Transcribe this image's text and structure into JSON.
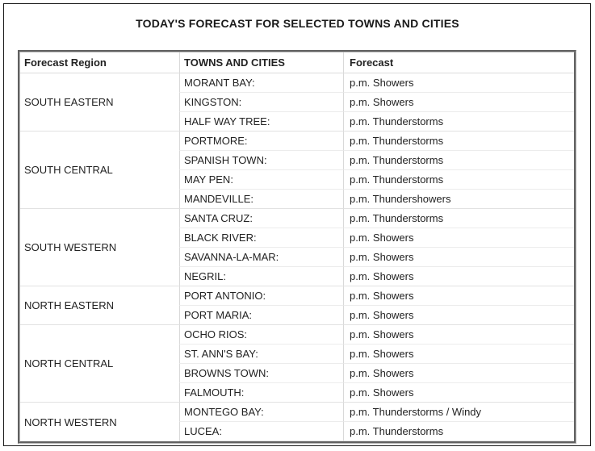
{
  "title": "TODAY'S FORECAST FOR SELECTED TOWNS AND CITIES",
  "colors": {
    "page_background": "#ffffff",
    "frame_border": "#1c1c1c",
    "text": "#222222",
    "table_outer_border": "#b4b4b4",
    "cell_divider": "#ececec",
    "column_divider": "#d9d9d9"
  },
  "table": {
    "headers": {
      "region": "Forecast Region",
      "towns": "TOWNS AND CITIES",
      "forecast": "Forecast"
    },
    "regions": [
      {
        "name": "SOUTH EASTERN",
        "rows": [
          {
            "town": "MORANT BAY:",
            "forecast": "p.m. Showers"
          },
          {
            "town": "KINGSTON:",
            "forecast": "p.m. Showers"
          },
          {
            "town": "HALF WAY TREE:",
            "forecast": "p.m. Thunderstorms"
          }
        ]
      },
      {
        "name": "SOUTH CENTRAL",
        "rows": [
          {
            "town": "PORTMORE:",
            "forecast": "p.m. Thunderstorms"
          },
          {
            "town": "SPANISH TOWN:",
            "forecast": "p.m. Thunderstorms"
          },
          {
            "town": "MAY PEN:",
            "forecast": "p.m. Thunderstorms"
          },
          {
            "town": "MANDEVILLE:",
            "forecast": "p.m. Thundershowers"
          }
        ]
      },
      {
        "name": "SOUTH WESTERN",
        "rows": [
          {
            "town": "SANTA CRUZ:",
            "forecast": "p.m. Thunderstorms"
          },
          {
            "town": "BLACK RIVER:",
            "forecast": "p.m. Showers"
          },
          {
            "town": "SAVANNA-LA-MAR:",
            "forecast": "p.m. Showers"
          },
          {
            "town": "NEGRIL:",
            "forecast": "p.m. Showers"
          }
        ]
      },
      {
        "name": "NORTH EASTERN",
        "rows": [
          {
            "town": "PORT ANTONIO:",
            "forecast": "p.m. Showers"
          },
          {
            "town": "PORT MARIA:",
            "forecast": "p.m. Showers"
          }
        ]
      },
      {
        "name": "NORTH CENTRAL",
        "rows": [
          {
            "town": "OCHO RIOS:",
            "forecast": "p.m. Showers"
          },
          {
            "town": "ST. ANN'S BAY:",
            "forecast": "p.m. Showers"
          },
          {
            "town": "BROWNS TOWN:",
            "forecast": "p.m. Showers"
          },
          {
            "town": "FALMOUTH:",
            "forecast": "p.m. Showers"
          }
        ]
      },
      {
        "name": "NORTH WESTERN",
        "rows": [
          {
            "town": "MONTEGO BAY:",
            "forecast": "p.m. Thunderstorms / Windy"
          },
          {
            "town": "LUCEA:",
            "forecast": "p.m. Thunderstorms"
          }
        ]
      }
    ]
  }
}
